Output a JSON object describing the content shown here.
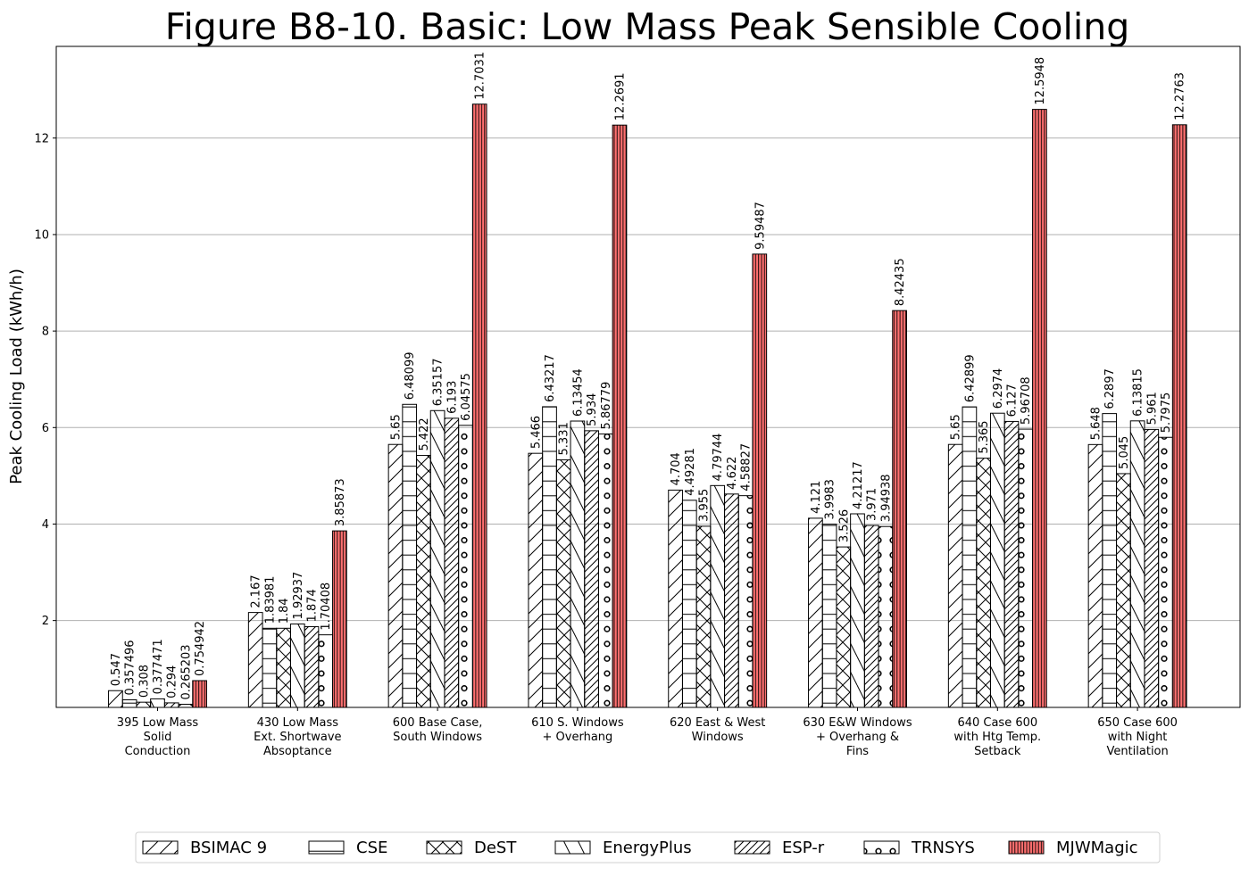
{
  "chart_data": {
    "type": "bar",
    "title": "Figure B8-10.  Basic: Low Mass Peak Sensible Cooling",
    "xlabel": "",
    "ylabel": "Peak Cooling Load (kWh/h)",
    "ylim": [
      0.2,
      13.9
    ],
    "yticks": [
      2,
      4,
      6,
      8,
      10,
      12
    ],
    "grid": "horizontal",
    "legend_position": "bottom-center",
    "categories": [
      [
        "395 Low Mass",
        "Solid",
        "Conduction"
      ],
      [
        "430 Low Mass",
        "Ext. Shortwave",
        "Absoptance"
      ],
      [
        "600 Base Case,",
        "South Windows"
      ],
      [
        "610 S. Windows",
        "+ Overhang"
      ],
      [
        "620 East & West",
        "Windows"
      ],
      [
        "630 E&W Windows",
        "+ Overhang &",
        "Fins"
      ],
      [
        "640 Case 600",
        "with Htg Temp.",
        "Setback"
      ],
      [
        "650 Case 600",
        "with Night",
        "Ventilation"
      ]
    ],
    "series": [
      {
        "name": "BSIMAC 9",
        "pattern": "slash",
        "color": "#ffffff",
        "values": [
          0.547,
          2.167,
          5.65,
          5.466,
          4.704,
          4.121,
          5.65,
          5.648
        ],
        "labels": [
          "0.547",
          "2.167",
          "5.65",
          "5.466",
          "4.704",
          "4.121",
          "5.65",
          "5.648"
        ]
      },
      {
        "name": "CSE",
        "pattern": "hline",
        "color": "#ffffff",
        "values": [
          0.357496,
          1.83981,
          6.48099,
          6.43217,
          4.49281,
          3.9983,
          6.42899,
          6.2897
        ],
        "labels": [
          "0.357496",
          "1.83981",
          "6.48099",
          "6.43217",
          "4.49281",
          "3.9983",
          "6.42899",
          "6.2897"
        ]
      },
      {
        "name": "DeST",
        "pattern": "cross",
        "color": "#ffffff",
        "values": [
          0.308,
          1.84,
          5.422,
          5.331,
          3.955,
          3.526,
          5.365,
          5.045
        ],
        "labels": [
          "0.308",
          "1.84",
          "5.422",
          "5.331",
          "3.955",
          "3.526",
          "5.365",
          "5.045"
        ]
      },
      {
        "name": "EnergyPlus",
        "pattern": "backslash",
        "color": "#ffffff",
        "values": [
          0.377471,
          1.92937,
          6.35157,
          6.13454,
          4.79744,
          4.21217,
          6.2974,
          6.13815
        ],
        "labels": [
          "0.377471",
          "1.92937",
          "6.35157",
          "6.13454",
          "4.79744",
          "4.21217",
          "6.2974",
          "6.13815"
        ]
      },
      {
        "name": "ESP-r",
        "pattern": "dslash",
        "color": "#ffffff",
        "values": [
          0.294,
          1.874,
          6.193,
          5.934,
          4.622,
          3.971,
          6.127,
          5.961
        ],
        "labels": [
          "0.294",
          "1.874",
          "6.193",
          "5.934",
          "4.622",
          "3.971",
          "6.127",
          "5.961"
        ]
      },
      {
        "name": "TRNSYS",
        "pattern": "circles",
        "color": "#ffffff",
        "values": [
          0.265203,
          1.70408,
          6.04575,
          5.86779,
          4.58827,
          3.94938,
          5.96708,
          5.7975
        ],
        "labels": [
          "0.265203",
          "1.70408",
          "6.04575",
          "5.86779",
          "4.58827",
          "3.94938",
          "5.96708",
          "5.7975"
        ]
      },
      {
        "name": "MJWMagic",
        "pattern": "vline",
        "color": "#ff7070",
        "values": [
          0.754942,
          3.85873,
          12.7031,
          12.2691,
          9.59487,
          8.42435,
          12.5948,
          12.2763
        ],
        "labels": [
          "0.754942",
          "3.85873",
          "12.7031",
          "12.2691",
          "9.59487",
          "8.42435",
          "12.5948",
          "12.2763"
        ]
      }
    ]
  }
}
